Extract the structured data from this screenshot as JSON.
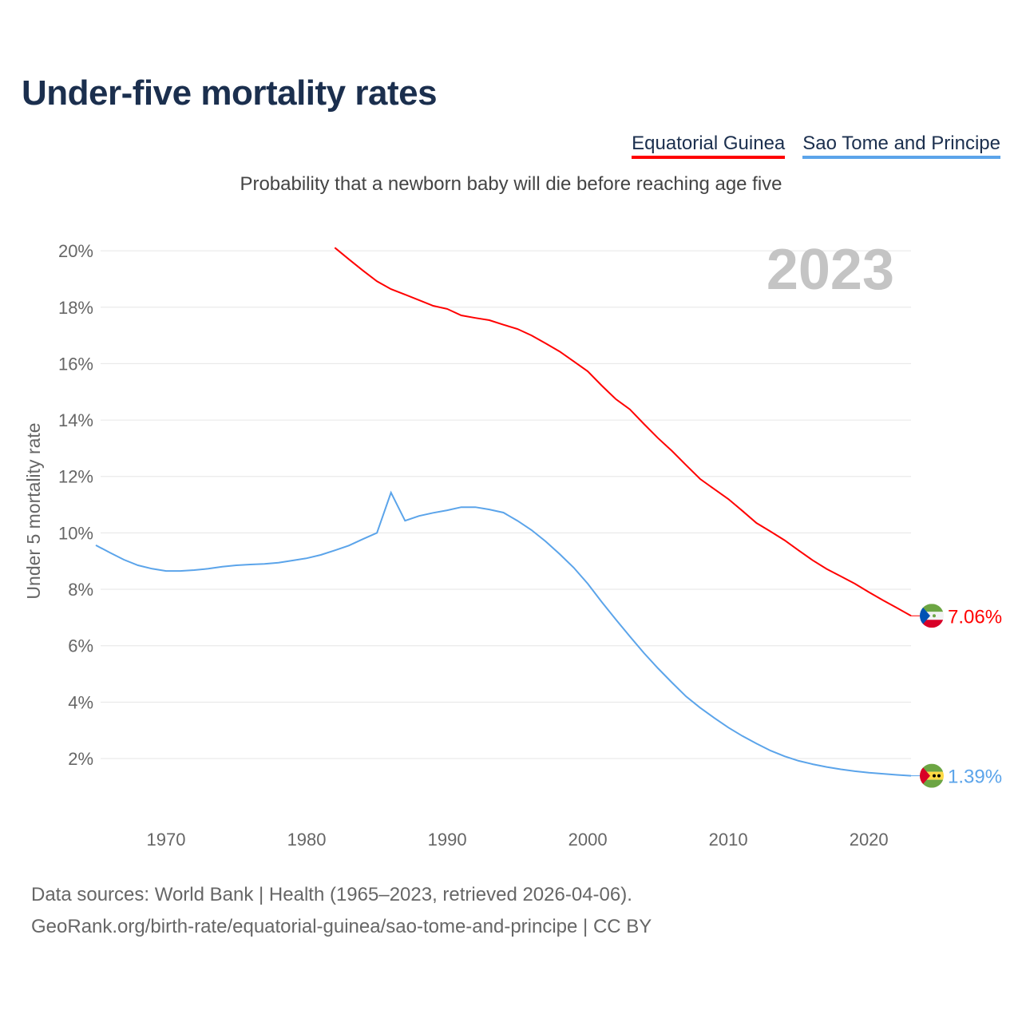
{
  "title": "Under-five mortality rates",
  "subtitle": "Probability that a newborn baby will die before reaching age five",
  "year_watermark": "2023",
  "footer": {
    "line1": "Data sources: World Bank | Health (1965–2023, retrieved 2026-04-06).",
    "line2": "GeoRank.org/birth-rate/equatorial-guinea/sao-tome-and-principe | CC BY"
  },
  "chart_data": {
    "type": "line",
    "title": "Under-five mortality rates",
    "xlabel": "",
    "ylabel": "Under 5 mortality rate",
    "xlim": [
      1965,
      2023
    ],
    "ylim": [
      0,
      21
    ],
    "grid": true,
    "legend_placement": "top-right",
    "x_ticks": [
      1970,
      1980,
      1990,
      2000,
      2010,
      2020
    ],
    "x_tick_labels": [
      "1970",
      "1980",
      "1990",
      "2000",
      "2010",
      "2020"
    ],
    "y_ticks": [
      2,
      4,
      6,
      8,
      10,
      12,
      14,
      16,
      18,
      20
    ],
    "y_tick_labels": [
      "2%",
      "4%",
      "6%",
      "8%",
      "10%",
      "12%",
      "14%",
      "16%",
      "18%",
      "20%"
    ],
    "series": [
      {
        "name": "Equatorial Guinea",
        "color": "#ff0000",
        "end_label": "7.06%",
        "flag": "equatorial-guinea-flag",
        "x": [
          1982,
          1983,
          1984,
          1985,
          1986,
          1987,
          1988,
          1989,
          1990,
          1991,
          1992,
          1993,
          1994,
          1995,
          1996,
          1997,
          1998,
          1999,
          2000,
          2001,
          2002,
          2003,
          2004,
          2005,
          2006,
          2007,
          2008,
          2009,
          2010,
          2011,
          2012,
          2013,
          2014,
          2015,
          2016,
          2017,
          2018,
          2019,
          2020,
          2021,
          2022,
          2023
        ],
        "values": [
          20.11,
          19.7,
          19.3,
          18.92,
          18.64,
          18.45,
          18.25,
          18.05,
          17.94,
          17.71,
          17.62,
          17.54,
          17.38,
          17.23,
          17.0,
          16.72,
          16.43,
          16.08,
          15.73,
          15.22,
          14.74,
          14.38,
          13.86,
          13.36,
          12.9,
          12.4,
          11.91,
          11.55,
          11.2,
          10.78,
          10.35,
          10.05,
          9.74,
          9.38,
          9.03,
          8.72,
          8.46,
          8.2,
          7.9,
          7.61,
          7.34,
          7.06
        ]
      },
      {
        "name": "Sao Tome and Principe",
        "color": "#5ba4ea",
        "end_label": "1.39%",
        "flag": "sao-tome-and-principe-flag",
        "x": [
          1965,
          1966,
          1967,
          1968,
          1969,
          1970,
          1971,
          1972,
          1973,
          1974,
          1975,
          1976,
          1977,
          1978,
          1979,
          1980,
          1981,
          1982,
          1983,
          1984,
          1985,
          1986,
          1987,
          1988,
          1989,
          1990,
          1991,
          1992,
          1993,
          1994,
          1995,
          1996,
          1997,
          1998,
          1999,
          2000,
          2001,
          2002,
          2003,
          2004,
          2005,
          2006,
          2007,
          2008,
          2009,
          2010,
          2011,
          2012,
          2013,
          2014,
          2015,
          2016,
          2017,
          2018,
          2019,
          2020,
          2021,
          2022,
          2023
        ],
        "values": [
          9.56,
          9.3,
          9.05,
          8.85,
          8.73,
          8.65,
          8.65,
          8.68,
          8.73,
          8.8,
          8.85,
          8.88,
          8.9,
          8.94,
          9.02,
          9.1,
          9.22,
          9.38,
          9.55,
          9.78,
          10.0,
          11.43,
          10.43,
          10.6,
          10.71,
          10.8,
          10.91,
          10.91,
          10.83,
          10.72,
          10.43,
          10.1,
          9.7,
          9.25,
          8.77,
          8.2,
          7.55,
          6.93,
          6.33,
          5.74,
          5.2,
          4.69,
          4.2,
          3.8,
          3.44,
          3.1,
          2.8,
          2.53,
          2.28,
          2.08,
          1.92,
          1.8,
          1.7,
          1.62,
          1.55,
          1.5,
          1.46,
          1.42,
          1.39
        ]
      }
    ]
  }
}
